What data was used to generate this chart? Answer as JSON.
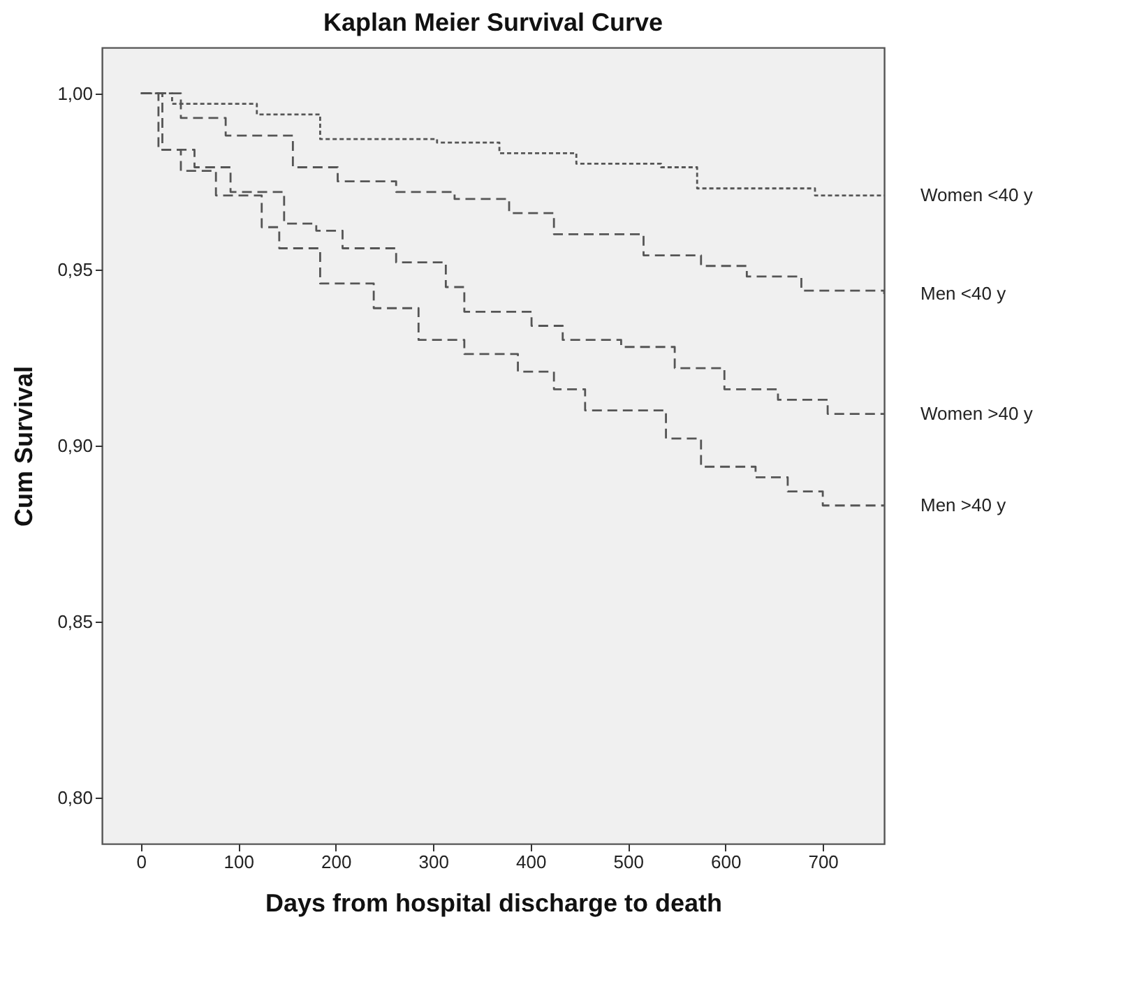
{
  "chart_data": {
    "type": "step",
    "title": "Kaplan Meier Survival Curve",
    "xlabel": "Days from hospital discharge to death",
    "ylabel": "Cum Survival",
    "xlim": [
      -40,
      763
    ],
    "xticks": [
      0,
      100,
      200,
      300,
      400,
      500,
      600,
      700
    ],
    "ylim": [
      0.787,
      1.013
    ],
    "yticks": [
      {
        "value": 0.8,
        "label": "0,80"
      },
      {
        "value": 0.85,
        "label": "0,85"
      },
      {
        "value": 0.9,
        "label": "0,90"
      },
      {
        "value": 0.95,
        "label": "0,95"
      },
      {
        "value": 1.0,
        "label": "1,00"
      }
    ],
    "grid": false,
    "legend": false,
    "series": [
      {
        "name": "Women <40 y",
        "color": "#555555",
        "line_style": "dotted",
        "x": [
          0,
          32,
          119,
          184,
          304,
          368,
          447,
          534,
          571,
          658,
          692,
          763
        ],
        "values": [
          1.0,
          0.997,
          0.994,
          0.987,
          0.986,
          0.983,
          0.98,
          0.979,
          0.973,
          0.973,
          0.971,
          0.971
        ]
      },
      {
        "name": "Men <40 y",
        "color": "#555555",
        "line_style": "dashed",
        "x": [
          0,
          41,
          87,
          156,
          202,
          262,
          322,
          378,
          424,
          447,
          516,
          575,
          622,
          678,
          763
        ],
        "values": [
          1.0,
          0.993,
          0.988,
          0.979,
          0.975,
          0.972,
          0.97,
          0.966,
          0.96,
          0.96,
          0.954,
          0.951,
          0.948,
          0.944,
          0.943
        ]
      },
      {
        "name": "Women >40 y",
        "color": "#555555",
        "line_style": "dashed",
        "x": [
          0,
          22,
          55,
          92,
          147,
          180,
          207,
          262,
          313,
          332,
          401,
          433,
          493,
          548,
          599,
          654,
          705,
          763
        ],
        "values": [
          1.0,
          0.984,
          0.979,
          0.972,
          0.963,
          0.961,
          0.956,
          0.952,
          0.945,
          0.938,
          0.934,
          0.93,
          0.928,
          0.922,
          0.916,
          0.913,
          0.909,
          0.909
        ]
      },
      {
        "name": "Men >40 y",
        "color": "#555555",
        "line_style": "dashed",
        "x": [
          0,
          18,
          41,
          77,
          124,
          142,
          184,
          239,
          285,
          332,
          387,
          424,
          456,
          539,
          575,
          631,
          664,
          700,
          763
        ],
        "values": [
          1.0,
          0.984,
          0.978,
          0.971,
          0.962,
          0.956,
          0.946,
          0.939,
          0.93,
          0.926,
          0.921,
          0.916,
          0.91,
          0.902,
          0.894,
          0.891,
          0.887,
          0.883,
          0.883
        ]
      }
    ]
  }
}
